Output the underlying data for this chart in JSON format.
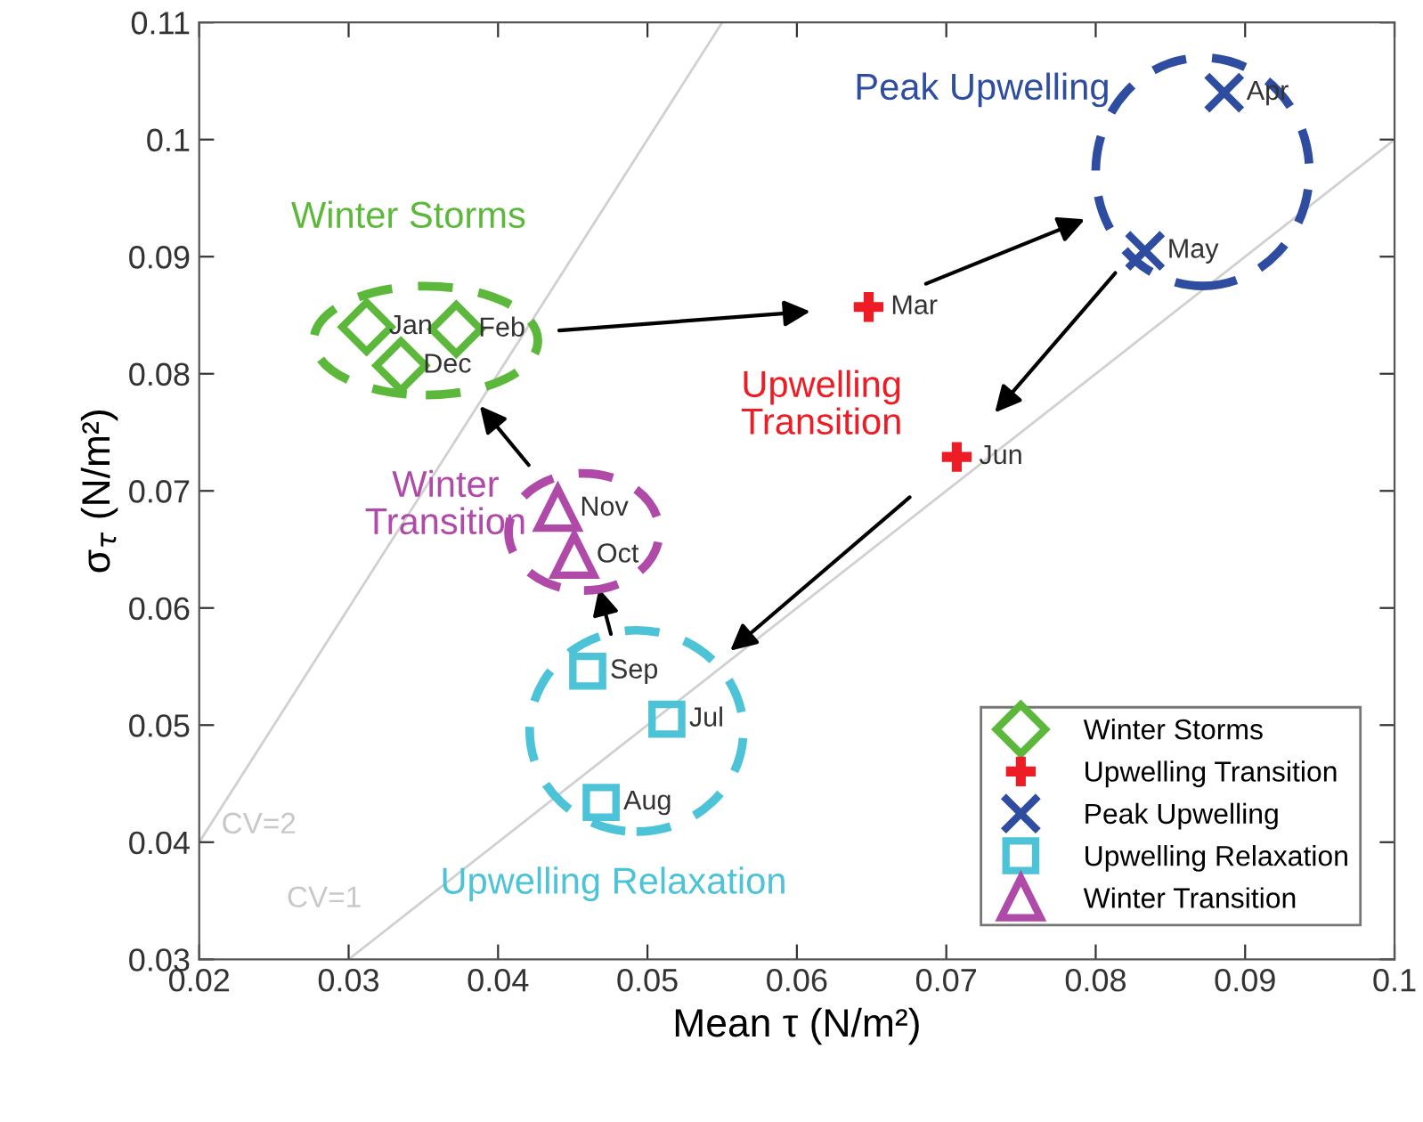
{
  "chart_data": {
    "type": "scatter",
    "xlabel": "Mean τ (N/m²)",
    "ylabel": "σ$_{τ}$ (N/m²)",
    "xlim": [
      0.02,
      0.1
    ],
    "ylim": [
      0.03,
      0.11
    ],
    "xticks": [
      0.02,
      0.03,
      0.04,
      0.05,
      0.06,
      0.07,
      0.08,
      0.09,
      0.1
    ],
    "yticks": [
      0.03,
      0.04,
      0.05,
      0.06,
      0.07,
      0.08,
      0.09,
      0.1,
      0.11
    ],
    "grid": false,
    "legend": "bottom right",
    "series": [
      {
        "name": "Winter Storms",
        "color": "#5cb83a",
        "marker": "diamond",
        "x": [
          0.0312,
          0.0372,
          0.0335
        ],
        "values": [
          0.084,
          0.0838,
          0.0807
        ],
        "value_labels": [
          "Jan",
          "Feb",
          "Dec"
        ]
      },
      {
        "name": "Upwelling Transition",
        "color": "#ee1c24",
        "marker": "cross",
        "x": [
          0.0648,
          0.0707
        ],
        "values": [
          0.0857,
          0.0729
        ],
        "value_labels": [
          "Mar",
          "Jun"
        ]
      },
      {
        "name": "Peak Upwelling",
        "color": "#2e4da0",
        "marker": "cross",
        "x": [
          0.0886,
          0.0833
        ],
        "values": [
          0.104,
          0.0905
        ],
        "value_labels": [
          "Apr",
          "May"
        ]
      },
      {
        "name": "Upwelling Relaxation",
        "color": "#4dc3d8",
        "marker": "square",
        "x": [
          0.046,
          0.0513,
          0.0469
        ],
        "values": [
          0.0546,
          0.0505,
          0.0434
        ],
        "value_labels": [
          "Sep",
          "Jul",
          "Aug"
        ]
      },
      {
        "name": "Winter Transition",
        "color": "#b04aa8",
        "marker": "triangle",
        "x": [
          0.044,
          0.0451
        ],
        "values": [
          0.0685,
          0.0645
        ],
        "value_labels": [
          "Nov",
          "Oct"
        ]
      },
      {
        "type": "line",
        "color": "#d0d0d0",
        "x": [
          0.02,
          0.055
        ],
        "values": [
          0.04,
          0.11
        ]
      },
      {
        "type": "line",
        "color": "#d0d0d0",
        "x": [
          0.03,
          0.1
        ],
        "values": [
          0.03,
          0.1
        ]
      }
    ],
    "annotations": [
      {
        "text": "Winter Storms",
        "x": 0.0312,
        "y": 0.084
      },
      {
        "text": "Upwelling\nTransition",
        "x": 0.0648,
        "y": 0.0857
      },
      "Peak Upwelling",
      {
        "text": "Upwelling Relaxation",
        "x": 0.0469,
        "y": 0.0434
      },
      {
        "text": "Winter\nTransition",
        "x": 0.0451,
        "y": 0.0645
      },
      {
        "text": "CV=2",
        "x": 0.0225,
        "y": 0.045
      },
      {
        "text": "CV=1",
        "x": 0.033,
        "y": 0.033
      }
    ]
  }
}
